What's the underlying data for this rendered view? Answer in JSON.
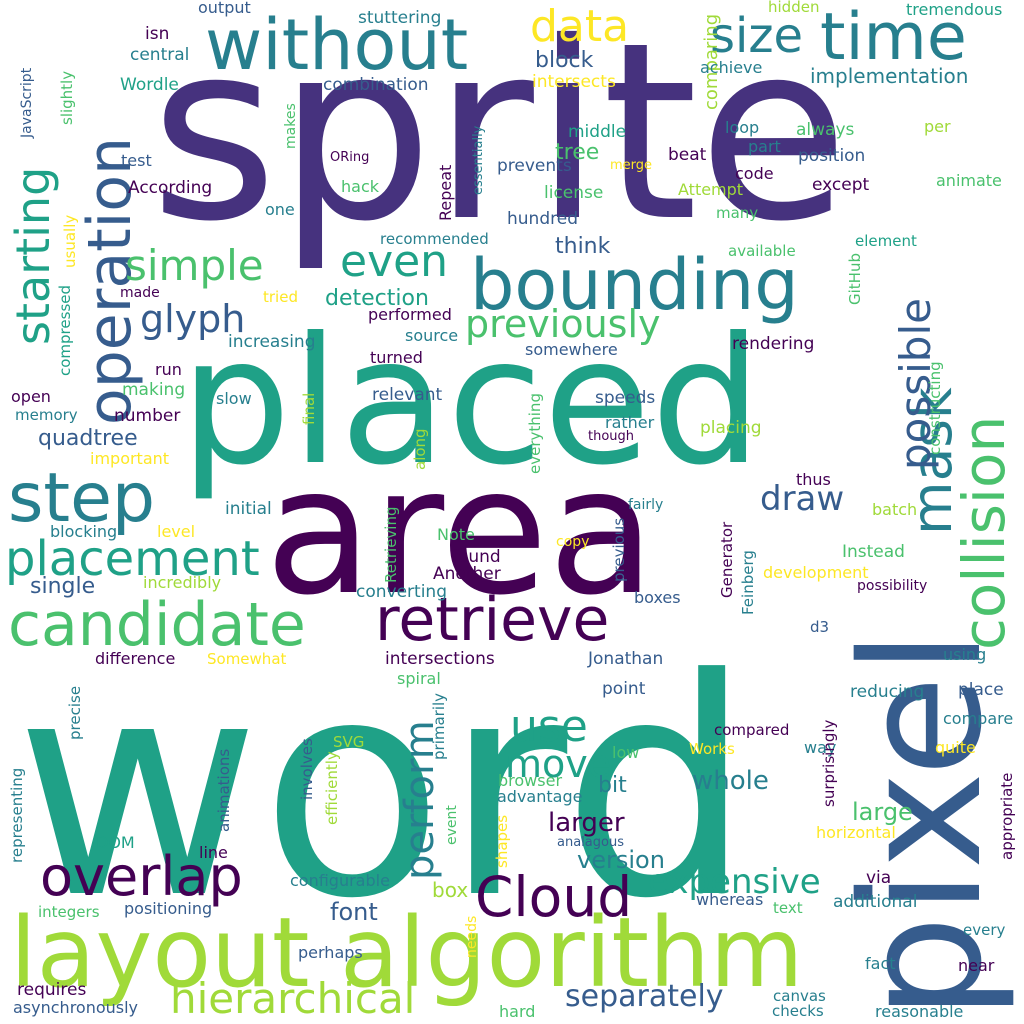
{
  "palette": [
    "#440154",
    "#46327e",
    "#365c8d",
    "#277f8e",
    "#1fa187",
    "#4ac16d",
    "#a0da39",
    "#fde725"
  ],
  "words": [
    {
      "text": "sprite",
      "color": "#46327e",
      "orientation": "horizontal"
    },
    {
      "text": "word",
      "color": "#1fa187",
      "orientation": "horizontal"
    },
    {
      "text": "area",
      "color": "#440154",
      "orientation": "horizontal"
    },
    {
      "text": "placed",
      "color": "#1fa187",
      "orientation": "horizontal"
    },
    {
      "text": "pixel",
      "color": "#365c8d",
      "orientation": "vertical"
    },
    {
      "text": "layout algorithm",
      "color": "#a0da39",
      "orientation": "horizontal"
    },
    {
      "text": "bounding",
      "color": "#277f8e",
      "orientation": "horizontal"
    },
    {
      "text": "collision",
      "color": "#4ac16d",
      "orientation": "vertical"
    },
    {
      "text": "without",
      "color": "#277f8e",
      "orientation": "horizontal"
    },
    {
      "text": "time",
      "color": "#277f8e",
      "orientation": "horizontal"
    },
    {
      "text": "operation",
      "color": "#365c8d",
      "orientation": "vertical"
    },
    {
      "text": "step",
      "color": "#277f8e",
      "orientation": "horizontal"
    },
    {
      "text": "candidate",
      "color": "#4ac16d",
      "orientation": "horizontal"
    },
    {
      "text": "retrieve",
      "color": "#440154",
      "orientation": "horizontal"
    },
    {
      "text": "overlap",
      "color": "#440154",
      "orientation": "horizontal"
    },
    {
      "text": "Cloud",
      "color": "#440154",
      "orientation": "horizontal"
    },
    {
      "text": "hierarchical",
      "color": "#a0da39",
      "orientation": "horizontal"
    },
    {
      "text": "mask",
      "color": "#277f8e",
      "orientation": "vertical"
    },
    {
      "text": "placement",
      "color": "#1fa187",
      "orientation": "horizontal"
    },
    {
      "text": "simple",
      "color": "#4ac16d",
      "orientation": "horizontal"
    },
    {
      "text": "size",
      "color": "#277f8e",
      "orientation": "horizontal"
    },
    {
      "text": "data",
      "color": "#fde725",
      "orientation": "horizontal"
    },
    {
      "text": "even",
      "color": "#1fa187",
      "orientation": "horizontal"
    },
    {
      "text": "starting",
      "color": "#1fa187",
      "orientation": "vertical"
    },
    {
      "text": "previously",
      "color": "#4ac16d",
      "orientation": "horizontal"
    },
    {
      "text": "possible",
      "color": "#365c8d",
      "orientation": "vertical"
    },
    {
      "text": "glyph",
      "color": "#365c8d",
      "orientation": "horizontal"
    },
    {
      "text": "use",
      "color": "#1fa187",
      "orientation": "horizontal"
    },
    {
      "text": "move",
      "color": "#1fa187",
      "orientation": "horizontal"
    },
    {
      "text": "perform",
      "color": "#277f8e",
      "orientation": "vertical"
    },
    {
      "text": "expensive",
      "color": "#1fa187",
      "orientation": "horizontal"
    },
    {
      "text": "draw",
      "color": "#365c8d",
      "orientation": "horizontal"
    },
    {
      "text": "separately",
      "color": "#365c8d",
      "orientation": "horizontal"
    },
    {
      "text": "whole",
      "color": "#277f8e",
      "orientation": "horizontal"
    },
    {
      "text": "larger",
      "color": "#440154",
      "orientation": "horizontal"
    },
    {
      "text": "version",
      "color": "#277f8e",
      "orientation": "horizontal"
    },
    {
      "text": "large",
      "color": "#4ac16d",
      "orientation": "horizontal"
    },
    {
      "text": "font",
      "color": "#365c8d",
      "orientation": "horizontal"
    },
    {
      "text": "box",
      "color": "#a0da39",
      "orientation": "horizontal"
    },
    {
      "text": "bit",
      "color": "#277f8e",
      "orientation": "horizontal"
    },
    {
      "text": "single",
      "color": "#365c8d",
      "orientation": "horizontal"
    },
    {
      "text": "quadtree",
      "color": "#365c8d",
      "orientation": "horizontal"
    },
    {
      "text": "detection",
      "color": "#1fa187",
      "orientation": "horizontal"
    },
    {
      "text": "implementation",
      "color": "#277f8e",
      "orientation": "horizontal"
    },
    {
      "text": "block",
      "color": "#365c8d",
      "orientation": "horizontal"
    },
    {
      "text": "tree",
      "color": "#4ac16d",
      "orientation": "horizontal"
    },
    {
      "text": "think",
      "color": "#365c8d",
      "orientation": "horizontal"
    },
    {
      "text": "comparing",
      "color": "#a0da39",
      "orientation": "vertical"
    },
    {
      "text": "central",
      "color": "#277f8e",
      "orientation": "horizontal"
    },
    {
      "text": "Wordle",
      "color": "#1fa187",
      "orientation": "horizontal"
    },
    {
      "text": "isn",
      "color": "#440154",
      "orientation": "horizontal"
    },
    {
      "text": "output",
      "color": "#365c8d",
      "orientation": "horizontal"
    },
    {
      "text": "stuttering",
      "color": "#277f8e",
      "orientation": "horizontal"
    },
    {
      "text": "combination",
      "color": "#365c8d",
      "orientation": "horizontal"
    },
    {
      "text": "intersects",
      "color": "#fde725",
      "orientation": "horizontal"
    },
    {
      "text": "hidden",
      "color": "#a0da39",
      "orientation": "horizontal"
    },
    {
      "text": "tremendous",
      "color": "#1fa187",
      "orientation": "horizontal"
    },
    {
      "text": "achieve",
      "color": "#277f8e",
      "orientation": "horizontal"
    },
    {
      "text": "middle",
      "color": "#1fa187",
      "orientation": "horizontal"
    },
    {
      "text": "loop",
      "color": "#277f8e",
      "orientation": "horizontal"
    },
    {
      "text": "always",
      "color": "#4ac16d",
      "orientation": "horizontal"
    },
    {
      "text": "per",
      "color": "#a0da39",
      "orientation": "horizontal"
    },
    {
      "text": "part",
      "color": "#277f8e",
      "orientation": "horizontal"
    },
    {
      "text": "position",
      "color": "#365c8d",
      "orientation": "horizontal"
    },
    {
      "text": "beat",
      "color": "#440154",
      "orientation": "horizontal"
    },
    {
      "text": "merge",
      "color": "#fde725",
      "orientation": "horizontal"
    },
    {
      "text": "prevents",
      "color": "#365c8d",
      "orientation": "horizontal"
    },
    {
      "text": "code",
      "color": "#440154",
      "orientation": "horizontal"
    },
    {
      "text": "except",
      "color": "#440154",
      "orientation": "horizontal"
    },
    {
      "text": "animate",
      "color": "#4ac16d",
      "orientation": "horizontal"
    },
    {
      "text": "license",
      "color": "#4ac16d",
      "orientation": "horizontal"
    },
    {
      "text": "Attempt",
      "color": "#a0da39",
      "orientation": "horizontal"
    },
    {
      "text": "many",
      "color": "#4ac16d",
      "orientation": "horizontal"
    },
    {
      "text": "hundred",
      "color": "#365c8d",
      "orientation": "horizontal"
    },
    {
      "text": "test",
      "color": "#365c8d",
      "orientation": "horizontal"
    },
    {
      "text": "ORing",
      "color": "#440154",
      "orientation": "horizontal"
    },
    {
      "text": "hack",
      "color": "#4ac16d",
      "orientation": "horizontal"
    },
    {
      "text": "According",
      "color": "#440154",
      "orientation": "horizontal"
    },
    {
      "text": "one",
      "color": "#277f8e",
      "orientation": "horizontal"
    },
    {
      "text": "recommended",
      "color": "#277f8e",
      "orientation": "horizontal"
    },
    {
      "text": "element",
      "color": "#1fa187",
      "orientation": "horizontal"
    },
    {
      "text": "available",
      "color": "#4ac16d",
      "orientation": "horizontal"
    },
    {
      "text": "made",
      "color": "#440154",
      "orientation": "horizontal"
    },
    {
      "text": "tried",
      "color": "#fde725",
      "orientation": "horizontal"
    },
    {
      "text": "performed",
      "color": "#440154",
      "orientation": "horizontal"
    },
    {
      "text": "source",
      "color": "#277f8e",
      "orientation": "horizontal"
    },
    {
      "text": "increasing",
      "color": "#277f8e",
      "orientation": "horizontal"
    },
    {
      "text": "somewhere",
      "color": "#365c8d",
      "orientation": "horizontal"
    },
    {
      "text": "rendering",
      "color": "#440154",
      "orientation": "horizontal"
    },
    {
      "text": "turned",
      "color": "#440154",
      "orientation": "horizontal"
    },
    {
      "text": "run",
      "color": "#440154",
      "orientation": "horizontal"
    },
    {
      "text": "making",
      "color": "#4ac16d",
      "orientation": "horizontal"
    },
    {
      "text": "open",
      "color": "#440154",
      "orientation": "horizontal"
    },
    {
      "text": "slow",
      "color": "#277f8e",
      "orientation": "horizontal"
    },
    {
      "text": "relevant",
      "color": "#365c8d",
      "orientation": "horizontal"
    },
    {
      "text": "speeds",
      "color": "#365c8d",
      "orientation": "horizontal"
    },
    {
      "text": "memory",
      "color": "#277f8e",
      "orientation": "horizontal"
    },
    {
      "text": "number",
      "color": "#440154",
      "orientation": "horizontal"
    },
    {
      "text": "rather",
      "color": "#277f8e",
      "orientation": "horizontal"
    },
    {
      "text": "placing",
      "color": "#a0da39",
      "orientation": "horizontal"
    },
    {
      "text": "though",
      "color": "#440154",
      "orientation": "horizontal"
    },
    {
      "text": "important",
      "color": "#fde725",
      "orientation": "horizontal"
    },
    {
      "text": "thus",
      "color": "#440154",
      "orientation": "horizontal"
    },
    {
      "text": "fairly",
      "color": "#277f8e",
      "orientation": "horizontal"
    },
    {
      "text": "batch",
      "color": "#a0da39",
      "orientation": "horizontal"
    },
    {
      "text": "initial",
      "color": "#277f8e",
      "orientation": "horizontal"
    },
    {
      "text": "blocking",
      "color": "#277f8e",
      "orientation": "horizontal"
    },
    {
      "text": "level",
      "color": "#fde725",
      "orientation": "horizontal"
    },
    {
      "text": "Note",
      "color": "#4ac16d",
      "orientation": "horizontal"
    },
    {
      "text": "found",
      "color": "#440154",
      "orientation": "horizontal"
    },
    {
      "text": "copy",
      "color": "#fde725",
      "orientation": "horizontal"
    },
    {
      "text": "Instead",
      "color": "#4ac16d",
      "orientation": "horizontal"
    },
    {
      "text": "Another",
      "color": "#440154",
      "orientation": "horizontal"
    },
    {
      "text": "incredibly",
      "color": "#a0da39",
      "orientation": "horizontal"
    },
    {
      "text": "development",
      "color": "#fde725",
      "orientation": "horizontal"
    },
    {
      "text": "possibility",
      "color": "#440154",
      "orientation": "horizontal"
    },
    {
      "text": "converting",
      "color": "#277f8e",
      "orientation": "horizontal"
    },
    {
      "text": "boxes",
      "color": "#365c8d",
      "orientation": "horizontal"
    },
    {
      "text": "d3",
      "color": "#365c8d",
      "orientation": "horizontal"
    },
    {
      "text": "difference",
      "color": "#440154",
      "orientation": "horizontal"
    },
    {
      "text": "Somewhat",
      "color": "#fde725",
      "orientation": "horizontal"
    },
    {
      "text": "intersections",
      "color": "#440154",
      "orientation": "horizontal"
    },
    {
      "text": "Jonathan",
      "color": "#365c8d",
      "orientation": "horizontal"
    },
    {
      "text": "using",
      "color": "#277f8e",
      "orientation": "horizontal"
    },
    {
      "text": "spiral",
      "color": "#4ac16d",
      "orientation": "horizontal"
    },
    {
      "text": "point",
      "color": "#365c8d",
      "orientation": "horizontal"
    },
    {
      "text": "reducing",
      "color": "#277f8e",
      "orientation": "horizontal"
    },
    {
      "text": "place",
      "color": "#365c8d",
      "orientation": "horizontal"
    },
    {
      "text": "compare",
      "color": "#277f8e",
      "orientation": "horizontal"
    },
    {
      "text": "compared",
      "color": "#440154",
      "orientation": "horizontal"
    },
    {
      "text": "SVG",
      "color": "#a0da39",
      "orientation": "horizontal"
    },
    {
      "text": "low",
      "color": "#4ac16d",
      "orientation": "horizontal"
    },
    {
      "text": "Works",
      "color": "#fde725",
      "orientation": "horizontal"
    },
    {
      "text": "way",
      "color": "#277f8e",
      "orientation": "horizontal"
    },
    {
      "text": "quite",
      "color": "#fde725",
      "orientation": "horizontal"
    },
    {
      "text": "browser",
      "color": "#4ac16d",
      "orientation": "horizontal"
    },
    {
      "text": "advantage",
      "color": "#277f8e",
      "orientation": "horizontal"
    },
    {
      "text": "DOM",
      "color": "#1fa187",
      "orientation": "horizontal"
    },
    {
      "text": "line",
      "color": "#440154",
      "orientation": "horizontal"
    },
    {
      "text": "analagous",
      "color": "#365c8d",
      "orientation": "horizontal"
    },
    {
      "text": "horizontal",
      "color": "#fde725",
      "orientation": "horizontal"
    },
    {
      "text": "configurable",
      "color": "#277f8e",
      "orientation": "horizontal"
    },
    {
      "text": "via",
      "color": "#440154",
      "orientation": "horizontal"
    },
    {
      "text": "integers",
      "color": "#4ac16d",
      "orientation": "horizontal"
    },
    {
      "text": "positioning",
      "color": "#365c8d",
      "orientation": "horizontal"
    },
    {
      "text": "whereas",
      "color": "#365c8d",
      "orientation": "horizontal"
    },
    {
      "text": "text",
      "color": "#4ac16d",
      "orientation": "horizontal"
    },
    {
      "text": "additional",
      "color": "#277f8e",
      "orientation": "horizontal"
    },
    {
      "text": "every",
      "color": "#277f8e",
      "orientation": "horizontal"
    },
    {
      "text": "perhaps",
      "color": "#365c8d",
      "orientation": "horizontal"
    },
    {
      "text": "fact",
      "color": "#277f8e",
      "orientation": "horizontal"
    },
    {
      "text": "near",
      "color": "#440154",
      "orientation": "horizontal"
    },
    {
      "text": "requires",
      "color": "#440154",
      "orientation": "horizontal"
    },
    {
      "text": "asynchronously",
      "color": "#365c8d",
      "orientation": "horizontal"
    },
    {
      "text": "hard",
      "color": "#4ac16d",
      "orientation": "horizontal"
    },
    {
      "text": "canvas",
      "color": "#277f8e",
      "orientation": "horizontal"
    },
    {
      "text": "checks",
      "color": "#277f8e",
      "orientation": "horizontal"
    },
    {
      "text": "reasonable",
      "color": "#277f8e",
      "orientation": "horizontal"
    },
    {
      "text": "JavaScript",
      "color": "#365c8d",
      "orientation": "vertical"
    },
    {
      "text": "slightly",
      "color": "#4ac16d",
      "orientation": "vertical"
    },
    {
      "text": "essentially",
      "color": "#277f8e",
      "orientation": "vertical"
    },
    {
      "text": "makes",
      "color": "#4ac16d",
      "orientation": "vertical"
    },
    {
      "text": "Repeat",
      "color": "#440154",
      "orientation": "vertical"
    },
    {
      "text": "usually",
      "color": "#fde725",
      "orientation": "vertical"
    },
    {
      "text": "compressed",
      "color": "#1fa187",
      "orientation": "vertical"
    },
    {
      "text": "final",
      "color": "#a0da39",
      "orientation": "vertical"
    },
    {
      "text": "along",
      "color": "#a0da39",
      "orientation": "vertical"
    },
    {
      "text": "everything",
      "color": "#4ac16d",
      "orientation": "vertical"
    },
    {
      "text": "previous",
      "color": "#365c8d",
      "orientation": "vertical"
    },
    {
      "text": "Retrieving",
      "color": "#4ac16d",
      "orientation": "vertical"
    },
    {
      "text": "Generator",
      "color": "#440154",
      "orientation": "vertical"
    },
    {
      "text": "Feinberg",
      "color": "#277f8e",
      "orientation": "vertical"
    },
    {
      "text": "GitHub",
      "color": "#4ac16d",
      "orientation": "vertical"
    },
    {
      "text": "constructing",
      "color": "#4ac16d",
      "orientation": "vertical"
    },
    {
      "text": "precise",
      "color": "#277f8e",
      "orientation": "vertical"
    },
    {
      "text": "representing",
      "color": "#277f8e",
      "orientation": "vertical"
    },
    {
      "text": "animations",
      "color": "#365c8d",
      "orientation": "vertical"
    },
    {
      "text": "involves",
      "color": "#365c8d",
      "orientation": "vertical"
    },
    {
      "text": "efficiently",
      "color": "#a0da39",
      "orientation": "vertical"
    },
    {
      "text": "primarily",
      "color": "#277f8e",
      "orientation": "vertical"
    },
    {
      "text": "event",
      "color": "#4ac16d",
      "orientation": "vertical"
    },
    {
      "text": "shapes",
      "color": "#fde725",
      "orientation": "vertical"
    },
    {
      "text": "needs",
      "color": "#fde725",
      "orientation": "vertical"
    },
    {
      "text": "surprisingly",
      "color": "#440154",
      "orientation": "vertical"
    },
    {
      "text": "appropriate",
      "color": "#440154",
      "orientation": "vertical"
    }
  ]
}
